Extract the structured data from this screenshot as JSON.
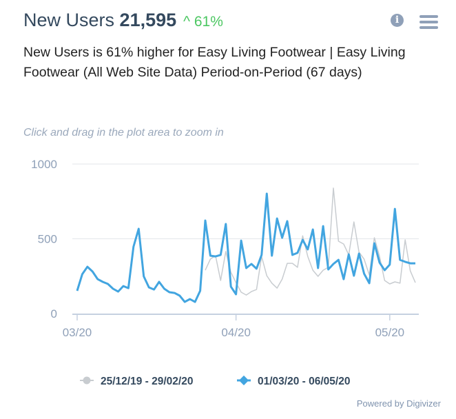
{
  "header": {
    "metric": "New Users",
    "value": "21,595",
    "change": "^ 61%",
    "info_icon": "info-icon",
    "menu_icon": "hamburger-menu-icon"
  },
  "subtitle": "New Users is 61% higher for Easy Living Footwear | Easy Living Footwear (All Web Site Data) Period-on-Period (67 days)",
  "hint": "Click and drag in the plot area to zoom in",
  "footer": "Powered by Digivizer",
  "colors": {
    "current": "#42a5e0",
    "previous": "#c8ccd0",
    "change": "#4cc762"
  },
  "chart_data": {
    "type": "line",
    "ylim": [
      0,
      1000
    ],
    "yticks": [
      "0",
      "500",
      "1000"
    ],
    "xticks": [
      {
        "label": "03/20",
        "day": 0
      },
      {
        "label": "04/20",
        "day": 31
      },
      {
        "label": "05/20",
        "day": 61
      }
    ],
    "legend_placement": "bottom",
    "series": [
      {
        "name": "25/12/19 - 29/02/20",
        "color": "#c8ccd0",
        "values": [
          null,
          null,
          null,
          null,
          null,
          null,
          null,
          null,
          null,
          null,
          null,
          null,
          null,
          null,
          null,
          null,
          null,
          null,
          null,
          null,
          null,
          null,
          null,
          null,
          null,
          290,
          364,
          387,
          221,
          415,
          276,
          207,
          143,
          124,
          147,
          161,
          382,
          253,
          203,
          170,
          230,
          336,
          336,
          309,
          520,
          382,
          290,
          249,
          290,
          309,
          839,
          484,
          465,
          392,
          613,
          410,
          364,
          258,
          507,
          382,
          221,
          198,
          212,
          203,
          493,
          286,
          207
        ]
      },
      {
        "name": "01/03/20 - 06/05/20",
        "color": "#42a5e0",
        "values": [
          152,
          263,
          313,
          281,
          230,
          212,
          198,
          166,
          147,
          184,
          170,
          447,
          567,
          249,
          175,
          161,
          212,
          166,
          143,
          138,
          120,
          78,
          97,
          78,
          152,
          622,
          387,
          382,
          392,
          599,
          180,
          129,
          488,
          304,
          332,
          300,
          392,
          802,
          387,
          636,
          507,
          618,
          392,
          406,
          493,
          429,
          562,
          304,
          585,
          295,
          332,
          359,
          230,
          396,
          253,
          401,
          267,
          203,
          470,
          341,
          290,
          327,
          700,
          359,
          346,
          336,
          336
        ]
      }
    ]
  }
}
